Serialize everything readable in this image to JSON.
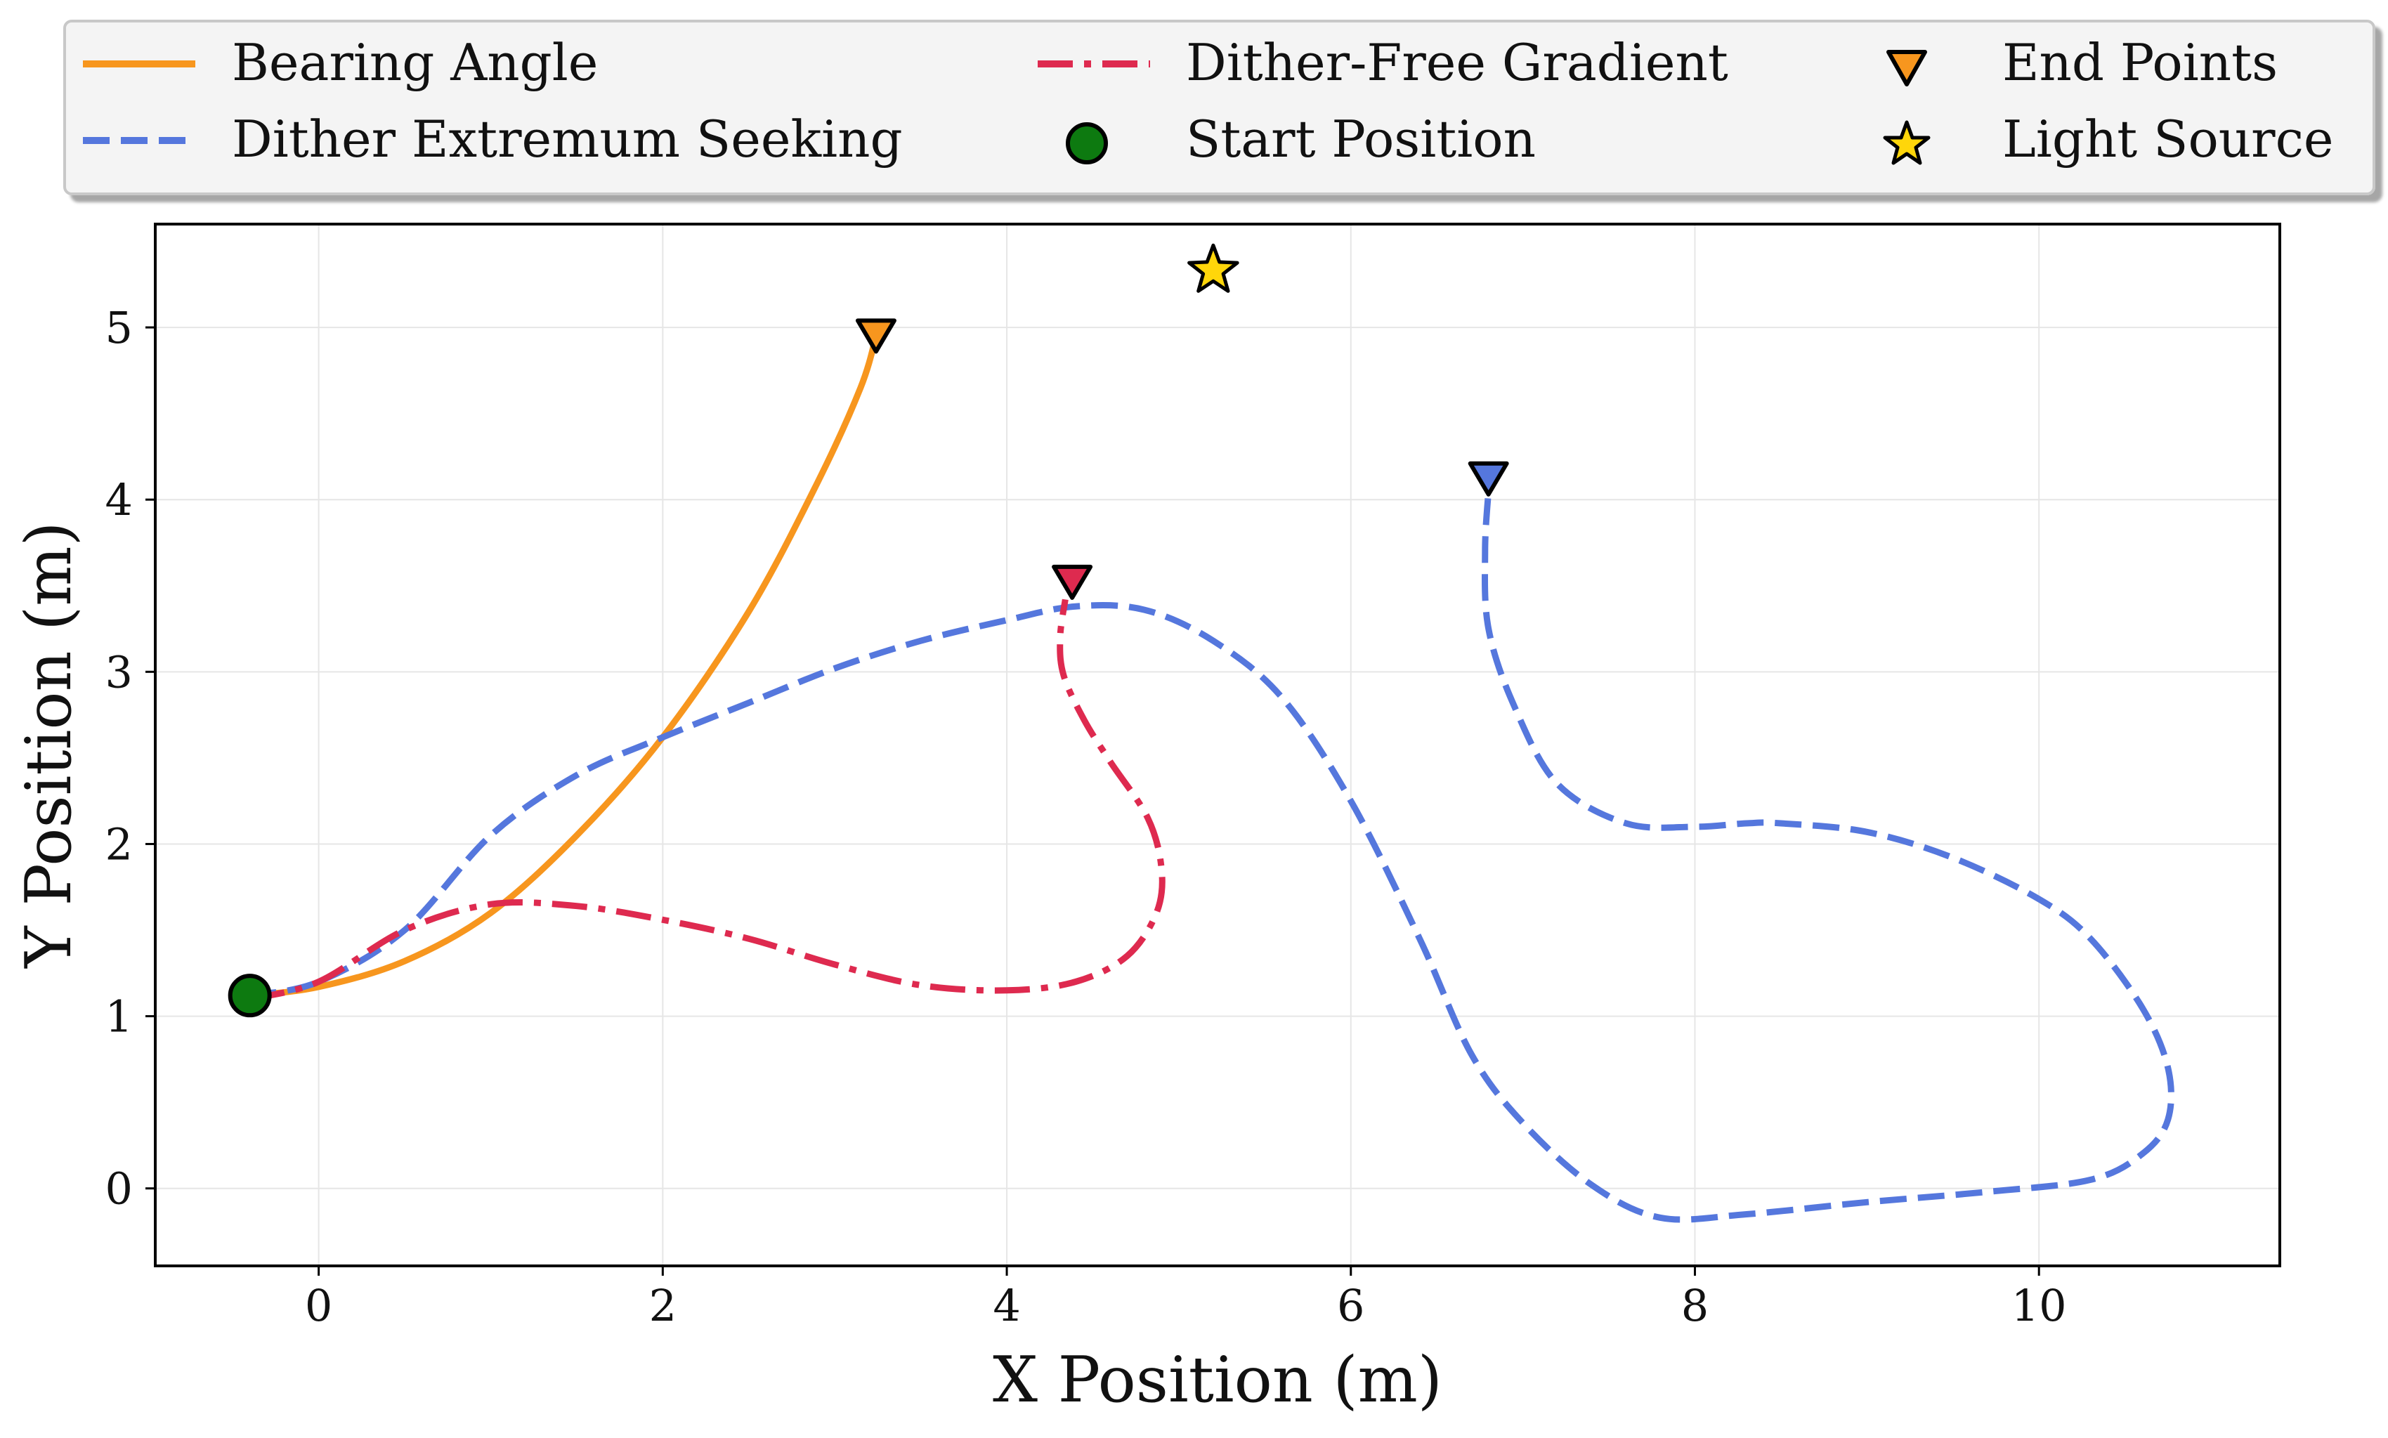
{
  "chart_data": {
    "type": "line",
    "xlabel": "X Position (m)",
    "ylabel": "Y Position (m)",
    "xlim": [
      -0.95,
      11.4
    ],
    "ylim": [
      -0.45,
      5.6
    ],
    "xticks": [
      0,
      2,
      4,
      6,
      8,
      10
    ],
    "yticks": [
      0,
      1,
      2,
      3,
      4,
      5
    ],
    "grid": true,
    "legend_position": "top",
    "colors": {
      "bearing": "#f7961e",
      "dither": "#5577dd",
      "dither_free": "#de2a4f",
      "start": "#0d7a10",
      "star": "#ffd60a",
      "grid": "#e6e6e6"
    },
    "series": [
      {
        "name": "Bearing Angle",
        "style": "solid",
        "color": "#f7961e",
        "x": [
          -0.4,
          0.0,
          0.5,
          1.0,
          1.5,
          2.0,
          2.5,
          2.9,
          3.15,
          3.24
        ],
        "y": [
          1.12,
          1.17,
          1.32,
          1.6,
          2.05,
          2.62,
          3.35,
          4.1,
          4.65,
          4.95
        ],
        "end": [
          3.24,
          4.95
        ]
      },
      {
        "name": "Dither Extremum Seeking",
        "style": "dashed",
        "color": "#5577dd",
        "x": [
          -0.4,
          0.0,
          0.5,
          1.0,
          1.5,
          2.0,
          2.5,
          3.0,
          3.5,
          4.0,
          4.4,
          4.8,
          5.2,
          5.6,
          6.0,
          6.4,
          6.7,
          7.0,
          7.4,
          7.8,
          8.3,
          9.0,
          9.7,
          10.3,
          10.6,
          10.75,
          10.75,
          10.6,
          10.3,
          10.0,
          9.5,
          9.0,
          8.5,
          8.3,
          8.0,
          7.6,
          7.2,
          6.95,
          6.8,
          6.78,
          6.8
        ],
        "y": [
          1.12,
          1.2,
          1.5,
          2.05,
          2.4,
          2.62,
          2.82,
          3.02,
          3.18,
          3.3,
          3.38,
          3.36,
          3.18,
          2.85,
          2.25,
          1.45,
          0.78,
          0.38,
          0.02,
          -0.17,
          -0.15,
          -0.08,
          -0.02,
          0.05,
          0.2,
          0.4,
          0.7,
          1.05,
          1.45,
          1.68,
          1.92,
          2.07,
          2.12,
          2.12,
          2.1,
          2.12,
          2.35,
          2.8,
          3.25,
          3.7,
          4.05
        ],
        "end": [
          6.8,
          4.12
        ]
      },
      {
        "name": "Dither-Free Gradient",
        "style": "dashdot",
        "color": "#de2a4f",
        "x": [
          -0.4,
          0.0,
          0.5,
          1.0,
          1.5,
          2.0,
          2.5,
          3.0,
          3.5,
          4.0,
          4.4,
          4.7,
          4.87,
          4.9,
          4.82,
          4.6,
          4.45,
          4.33,
          4.31,
          4.34
        ],
        "y": [
          1.1,
          1.2,
          1.5,
          1.65,
          1.64,
          1.56,
          1.45,
          1.3,
          1.18,
          1.15,
          1.2,
          1.35,
          1.6,
          1.85,
          2.15,
          2.48,
          2.72,
          2.98,
          3.2,
          3.42
        ],
        "end": [
          4.38,
          3.52
        ]
      }
    ],
    "start_position": [
      -0.4,
      1.12
    ],
    "light_source": [
      5.2,
      5.33
    ],
    "legend": [
      {
        "label": "Bearing Angle",
        "kind": "line-solid",
        "color": "#f7961e"
      },
      {
        "label": "Dither Extremum Seeking",
        "kind": "line-dashed",
        "color": "#5577dd"
      },
      {
        "label": "Dither-Free Gradient",
        "kind": "line-dashdot",
        "color": "#de2a4f"
      },
      {
        "label": "Start Position",
        "kind": "circle",
        "color": "#0d7a10"
      },
      {
        "label": "End Points",
        "kind": "triangle",
        "color": "#f7961e"
      },
      {
        "label": "Light Source",
        "kind": "star",
        "color": "#ffd60a"
      }
    ]
  }
}
